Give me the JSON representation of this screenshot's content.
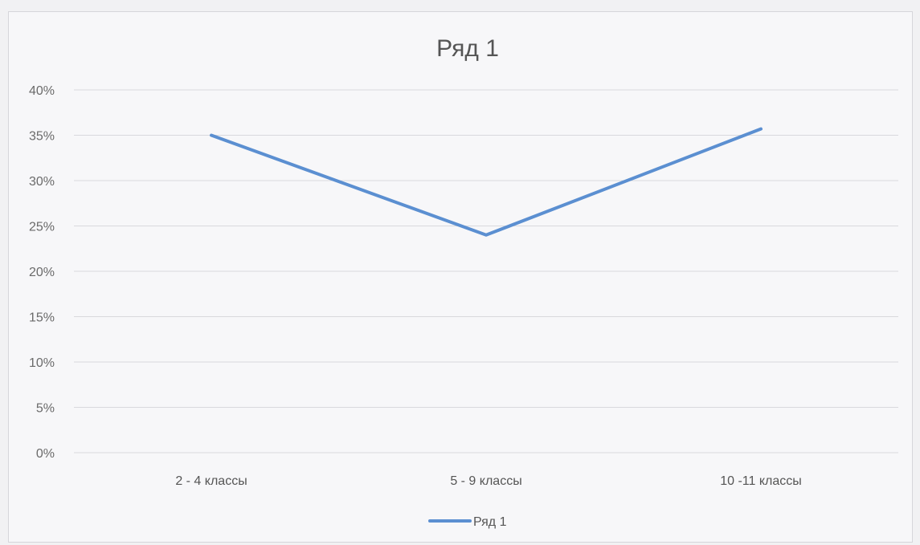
{
  "chart_data": {
    "type": "line",
    "title": "Ряд 1",
    "categories": [
      "2 - 4 классы",
      "5 - 9 классы",
      "10 -11 классы"
    ],
    "series": [
      {
        "name": "Ряд 1",
        "values": [
          0.35,
          0.24,
          0.357
        ],
        "color": "#5b8fd1"
      }
    ],
    "ylim": [
      0,
      0.4
    ],
    "yticks": [
      "0%",
      "5%",
      "10%",
      "15%",
      "20%",
      "25%",
      "30%",
      "35%",
      "40%"
    ],
    "grid": true,
    "legend": "bottom"
  }
}
